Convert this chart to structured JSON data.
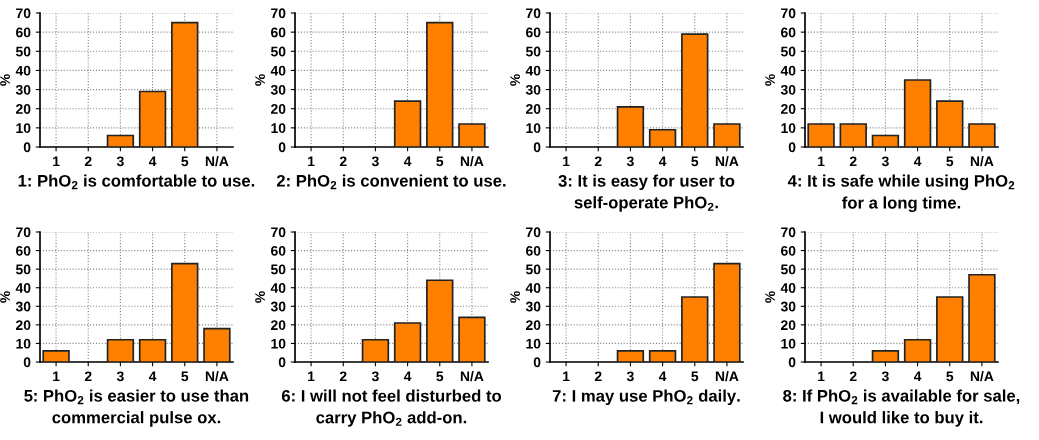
{
  "chart_data": [
    {
      "type": "bar",
      "xlabel": "1: PhO$_{2}$ is comfortable to use.",
      "ylabel": "%",
      "categories": [
        "1",
        "2",
        "3",
        "4",
        "5",
        "N/A"
      ],
      "values": [
        0,
        0,
        6,
        29,
        65,
        0
      ],
      "color": "#ff8000",
      "ylim": [
        0,
        70
      ],
      "yticks": [
        0,
        10,
        20,
        30,
        40,
        50,
        60,
        70
      ],
      "grid": true
    },
    {
      "type": "bar",
      "xlabel": "2: PhO$_{2}$ is convenient to use.",
      "ylabel": "%",
      "categories": [
        "1",
        "2",
        "3",
        "4",
        "5",
        "N/A"
      ],
      "values": [
        0,
        0,
        0,
        24,
        65,
        12
      ],
      "color": "#ff8000",
      "ylim": [
        0,
        70
      ],
      "yticks": [
        0,
        10,
        20,
        30,
        40,
        50,
        60,
        70
      ],
      "grid": true
    },
    {
      "type": "bar",
      "xlabel": "3: It is easy for user to\nself-operate PhO$_{2}$.",
      "ylabel": "%",
      "categories": [
        "1",
        "2",
        "3",
        "4",
        "5",
        "N/A"
      ],
      "values": [
        0,
        0,
        21,
        9,
        59,
        12
      ],
      "color": "#ff8000",
      "ylim": [
        0,
        70
      ],
      "yticks": [
        0,
        10,
        20,
        30,
        40,
        50,
        60,
        70
      ],
      "grid": true
    },
    {
      "type": "bar",
      "xlabel": "4: It is safe while using PhO$_{2}$\nfor a long time.",
      "ylabel": "%",
      "categories": [
        "1",
        "2",
        "3",
        "4",
        "5",
        "N/A"
      ],
      "values": [
        12,
        12,
        6,
        35,
        24,
        12
      ],
      "color": "#ff8000",
      "ylim": [
        0,
        70
      ],
      "yticks": [
        0,
        10,
        20,
        30,
        40,
        50,
        60,
        70
      ],
      "grid": true
    },
    {
      "type": "bar",
      "xlabel": "5: PhO$_{2}$ is easier to use than\ncommercial pulse ox.",
      "ylabel": "%",
      "categories": [
        "1",
        "2",
        "3",
        "4",
        "5",
        "N/A"
      ],
      "values": [
        6,
        0,
        12,
        12,
        53,
        18
      ],
      "color": "#ff8000",
      "ylim": [
        0,
        70
      ],
      "yticks": [
        0,
        10,
        20,
        30,
        40,
        50,
        60,
        70
      ],
      "grid": true
    },
    {
      "type": "bar",
      "xlabel": "6: I will not feel disturbed to\ncarry PhO$_{2}$ add-on.",
      "ylabel": "%",
      "categories": [
        "1",
        "2",
        "3",
        "4",
        "5",
        "N/A"
      ],
      "values": [
        0,
        0,
        12,
        21,
        44,
        24
      ],
      "color": "#ff8000",
      "ylim": [
        0,
        70
      ],
      "yticks": [
        0,
        10,
        20,
        30,
        40,
        50,
        60,
        70
      ],
      "grid": true
    },
    {
      "type": "bar",
      "xlabel": "7: I may use PhO$_{2}$ daily.",
      "ylabel": "%",
      "categories": [
        "1",
        "2",
        "3",
        "4",
        "5",
        "N/A"
      ],
      "values": [
        0,
        0,
        6,
        6,
        35,
        53
      ],
      "color": "#ff8000",
      "ylim": [
        0,
        70
      ],
      "yticks": [
        0,
        10,
        20,
        30,
        40,
        50,
        60,
        70
      ],
      "grid": true
    },
    {
      "type": "bar",
      "xlabel": "8: If PhO$_{2}$ is available for sale,\nI would like to buy it.",
      "ylabel": "%",
      "categories": [
        "1",
        "2",
        "3",
        "4",
        "5",
        "N/A"
      ],
      "values": [
        0,
        0,
        6,
        12,
        35,
        47
      ],
      "color": "#ff8000",
      "ylim": [
        0,
        70
      ],
      "yticks": [
        0,
        10,
        20,
        30,
        40,
        50,
        60,
        70
      ],
      "grid": true
    }
  ]
}
